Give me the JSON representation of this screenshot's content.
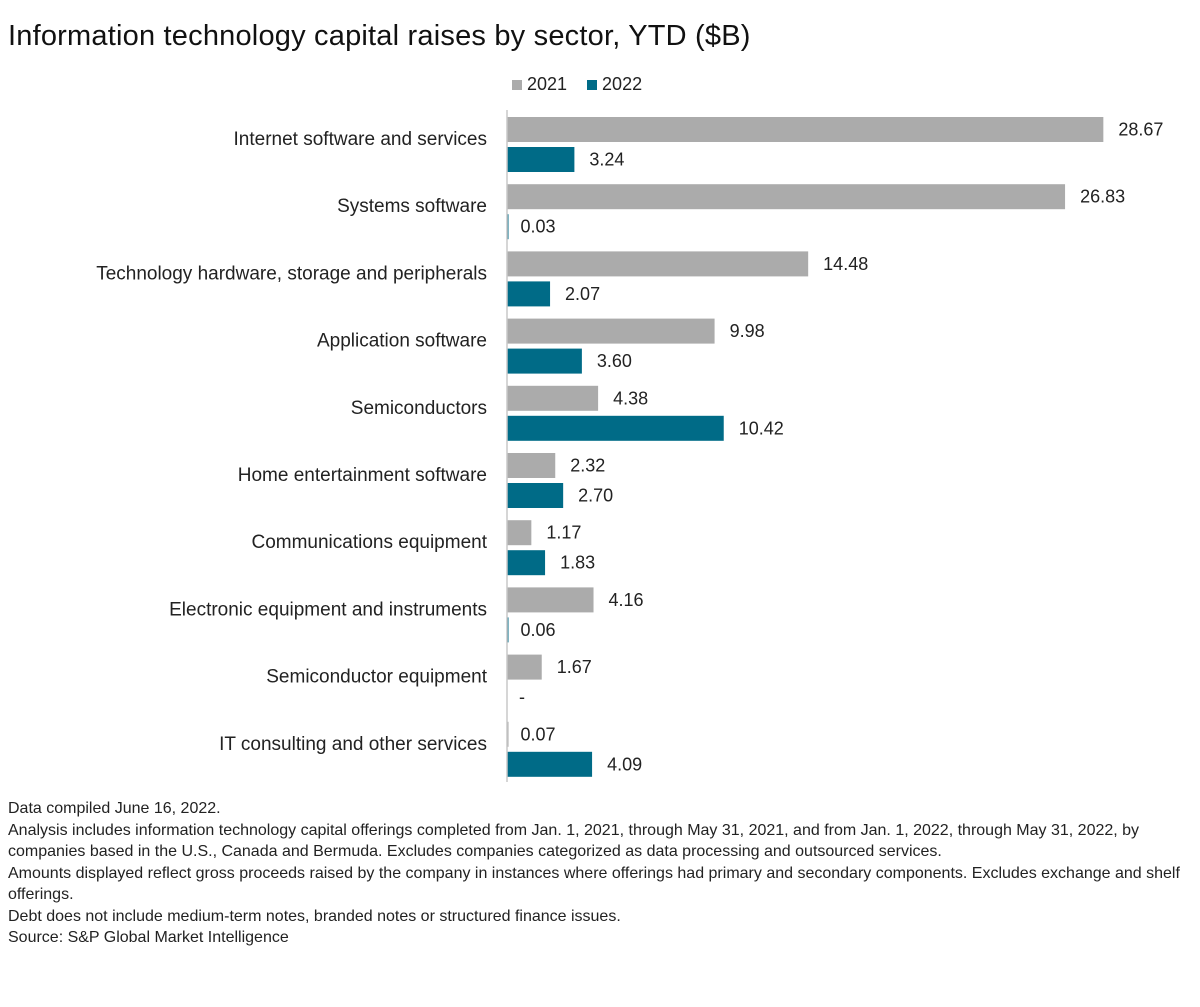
{
  "chart_data": {
    "type": "bar",
    "orientation": "horizontal",
    "title": "Information technology capital raises by sector, YTD ($B)",
    "xlabel": "",
    "ylabel": "",
    "xlim": [
      0,
      30
    ],
    "grid": false,
    "legend_position": "top",
    "categories": [
      "Internet software and services",
      "Systems software",
      "Technology hardware, storage and peripherals",
      "Application software",
      "Semiconductors",
      "Home entertainment software",
      "Communications equipment",
      "Electronic equipment and instruments",
      "Semiconductor equipment",
      "IT consulting and other services"
    ],
    "series": [
      {
        "name": "2021",
        "color": "#ababab",
        "values": [
          28.67,
          26.83,
          14.48,
          9.98,
          4.38,
          2.32,
          1.17,
          4.16,
          1.67,
          0.07
        ],
        "labels": [
          "28.67",
          "26.83",
          "14.48",
          "9.98",
          "4.38",
          "2.32",
          "1.17",
          "4.16",
          "1.67",
          "0.07"
        ]
      },
      {
        "name": "2022",
        "color": "#006b87",
        "values": [
          3.24,
          0.03,
          2.07,
          3.6,
          10.42,
          2.7,
          1.83,
          0.06,
          0,
          4.09
        ],
        "labels": [
          "3.24",
          "0.03",
          "2.07",
          "3.60",
          "10.42",
          "2.70",
          "1.83",
          "0.06",
          "-",
          "4.09"
        ]
      }
    ]
  },
  "notes": [
    "Data compiled June 16, 2022.",
    "Analysis includes information technology capital offerings completed from Jan. 1, 2021, through May 31, 2021, and from Jan. 1, 2022, through May 31, 2022, by companies based in the U.S., Canada and Bermuda. Excludes companies categorized as data processing and outsourced services.",
    "Amounts displayed reflect gross proceeds raised by the company in instances where offerings had primary and secondary components. Excludes exchange and shelf offerings.",
    "Debt does not include medium-term notes, branded notes or structured finance issues.",
    "Source: S&P Global Market Intelligence"
  ]
}
